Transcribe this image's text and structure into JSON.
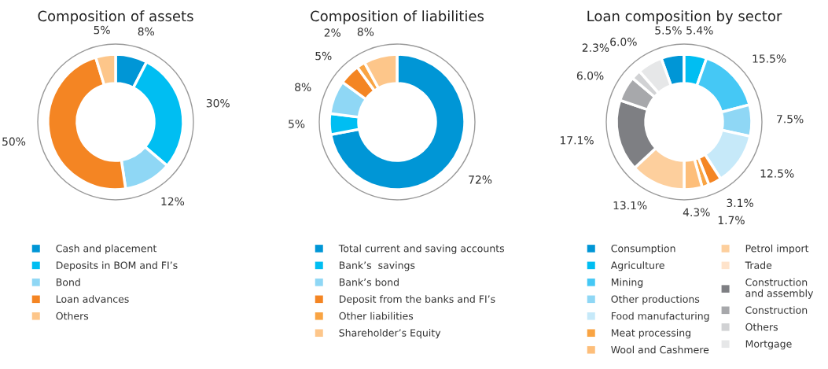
{
  "chart_data": [
    {
      "type": "donut",
      "title": "Composition of assets",
      "legend": "bottom",
      "categories": [
        "Cash and placement",
        "Deposits in BOM and FI’s",
        "Bond",
        "Loan advances",
        "Others"
      ],
      "values": [
        8,
        30,
        12,
        50,
        5
      ],
      "value_labels": [
        "8%",
        "30%",
        "12%",
        "50%",
        "5%"
      ],
      "colors": [
        "#0096d6",
        "#00bef2",
        "#8fd7f5",
        "#f48523",
        "#fdc68a"
      ]
    },
    {
      "type": "donut",
      "title": "Composition of liabilities",
      "legend": "bottom",
      "categories": [
        "Total current and saving accounts",
        "Bank’s  savings",
        "Bank’s bond",
        "Deposit from the banks and FI’s",
        "Other liabilities",
        "Shareholder’s Equity"
      ],
      "values": [
        72,
        5,
        8,
        5,
        2,
        8
      ],
      "value_labels": [
        "72%",
        "5%",
        "8%",
        "5%",
        "2%",
        "8%"
      ],
      "colors": [
        "#0096d6",
        "#00bef2",
        "#8fd7f5",
        "#f48523",
        "#f9a443",
        "#fdc68a"
      ]
    },
    {
      "type": "donut",
      "title": "Loan composition by sector",
      "legend": "bottom",
      "categories": [
        "Consumption",
        "Agriculture",
        "Mining",
        "Other productions",
        "Food manufacturing",
        null,
        "Meat processing",
        "Wool and Cashmere",
        "Petrol import",
        "Trade",
        "Construction\nand assembly",
        "Construction",
        "Others",
        "Mortgage"
      ],
      "values": [
        5.5,
        5.4,
        15.5,
        7.5,
        12.5,
        3.1,
        1.7,
        4.3,
        13.1,
        null,
        17.1,
        6.0,
        2.3,
        6.0
      ],
      "value_labels": [
        "5.5%",
        "5.4%",
        "15.5%",
        "7.5%",
        "12.5%",
        "3.1%",
        "1.7%",
        "4.3%",
        "13.1%",
        null,
        "17.1%",
        "6.0%",
        "2.3%",
        "6.0%"
      ],
      "colors": [
        "#0096d6",
        "#00bef2",
        "#45c8f5",
        "#8fd7f5",
        "#c6e9f9",
        "#f48523",
        "#f9a443",
        "#fdbe7a",
        "#fdcf9d",
        "#fee3cb",
        "#7e7f83",
        "#a7a8ab",
        "#d1d2d4",
        "#e6e7e8"
      ]
    }
  ]
}
